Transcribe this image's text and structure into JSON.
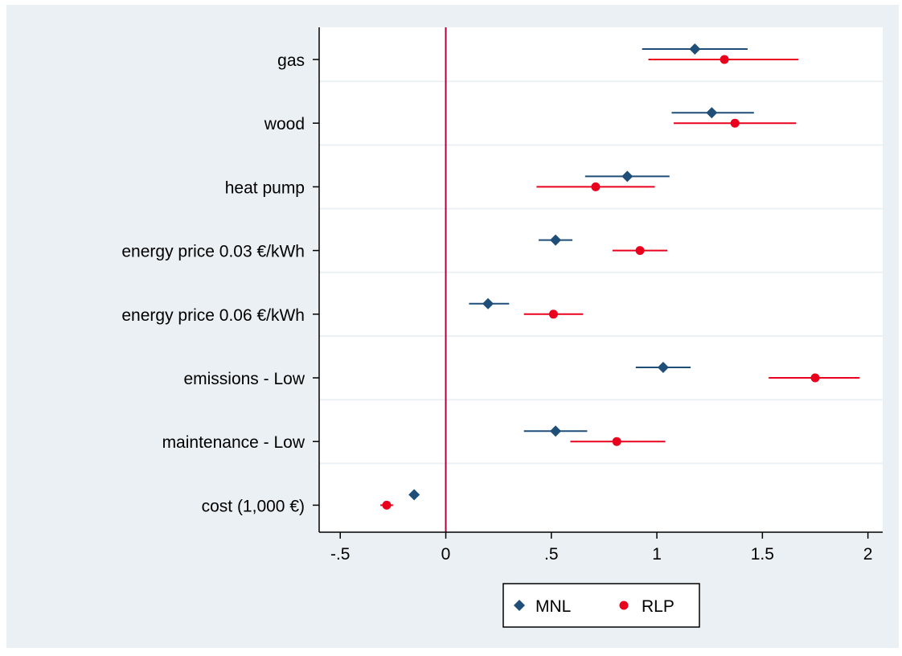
{
  "chart_data": {
    "type": "scatter",
    "title": "",
    "xlabel": "",
    "ylabel": "",
    "xlim": [
      -0.6,
      2.07
    ],
    "xticks": [
      -0.5,
      0,
      0.5,
      1,
      1.5,
      2
    ],
    "xtick_labels": [
      "-.5",
      "0",
      ".5",
      "1",
      "1.5",
      "2"
    ],
    "reference_line": {
      "x": 0,
      "color": "#b0003a"
    },
    "grid": "horizontal",
    "legend_position": "bottom",
    "categories": [
      "gas",
      "wood",
      "heat pump",
      "energy price 0.03 €/kWh",
      "energy price 0.06 €/kWh",
      "emissions - Low",
      "maintenance - Low",
      "cost (1,000 €)"
    ],
    "series": [
      {
        "name": "MNL",
        "marker": "diamond",
        "color": "#1f4e79",
        "values": [
          1.18,
          1.26,
          0.86,
          0.52,
          0.2,
          1.03,
          0.52,
          -0.15
        ],
        "ci_low": [
          0.93,
          1.07,
          0.66,
          0.44,
          0.11,
          0.9,
          0.37,
          -0.15
        ],
        "ci_high": [
          1.43,
          1.46,
          1.06,
          0.6,
          0.3,
          1.16,
          0.67,
          -0.15
        ]
      },
      {
        "name": "RLP",
        "marker": "circle",
        "color": "#e8001c",
        "values": [
          1.32,
          1.37,
          0.71,
          0.92,
          0.51,
          1.75,
          0.81,
          -0.28
        ],
        "ci_low": [
          0.96,
          1.08,
          0.43,
          0.79,
          0.37,
          1.53,
          0.59,
          -0.31
        ],
        "ci_high": [
          1.67,
          1.66,
          0.99,
          1.05,
          0.65,
          1.96,
          1.04,
          -0.25
        ]
      }
    ]
  }
}
